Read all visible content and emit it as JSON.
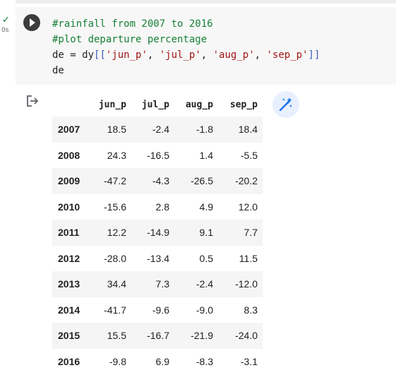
{
  "cell": {
    "status": "✓",
    "exec_time": "0s",
    "code": {
      "comment1": "#rainfall from 2007 to 2016",
      "comment2": "#plot departure percentage",
      "line3_prefix": "de = dy",
      "open_brackets": "[[",
      "close_brackets": "]]",
      "strings": [
        "'jun_p'",
        "'jul_p'",
        "'aug_p'",
        "'sep_p'"
      ],
      "separator": ", ",
      "line4": "de"
    }
  },
  "output": {
    "columns": [
      "jun_p",
      "jul_p",
      "aug_p",
      "sep_p"
    ],
    "rows": [
      {
        "index": "2007",
        "values": [
          "18.5",
          "-2.4",
          "-1.8",
          "18.4"
        ]
      },
      {
        "index": "2008",
        "values": [
          "24.3",
          "-16.5",
          "1.4",
          "-5.5"
        ]
      },
      {
        "index": "2009",
        "values": [
          "-47.2",
          "-4.3",
          "-26.5",
          "-20.2"
        ]
      },
      {
        "index": "2010",
        "values": [
          "-15.6",
          "2.8",
          "4.9",
          "12.0"
        ]
      },
      {
        "index": "2011",
        "values": [
          "12.2",
          "-14.9",
          "9.1",
          "7.7"
        ]
      },
      {
        "index": "2012",
        "values": [
          "-28.0",
          "-13.4",
          "0.5",
          "11.5"
        ]
      },
      {
        "index": "2013",
        "values": [
          "34.4",
          "7.3",
          "-2.4",
          "-12.0"
        ]
      },
      {
        "index": "2014",
        "values": [
          "-41.7",
          "-9.6",
          "-9.0",
          "8.3"
        ]
      },
      {
        "index": "2015",
        "values": [
          "15.5",
          "-16.7",
          "-21.9",
          "-24.0"
        ]
      },
      {
        "index": "2016",
        "values": [
          "-9.8",
          "6.9",
          "-8.3",
          "-3.1"
        ]
      }
    ]
  },
  "icons": {
    "run": "play-icon",
    "output": "output-arrow-icon",
    "magic": "magic-wand-icon"
  },
  "colors": {
    "comment": "#188038",
    "string": "#a31515",
    "bracket": "#3d5ab8",
    "magic_icon": "#1a73e8",
    "magic_bg": "#e8f0fe"
  }
}
